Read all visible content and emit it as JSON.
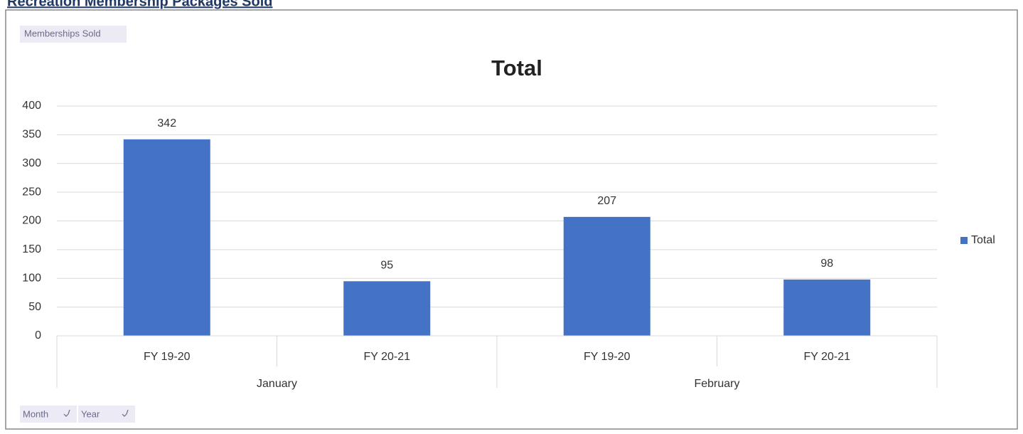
{
  "heading": "Recreation Membership Packages Sold",
  "chart_data": {
    "type": "bar",
    "title": "Total",
    "value_field": "Memberships Sold",
    "axis_fields": [
      "Month",
      "Year"
    ],
    "groups": [
      {
        "name": "January",
        "categories": [
          "FY 19-20",
          "FY 20-21"
        ]
      },
      {
        "name": "February",
        "categories": [
          "FY 19-20",
          "FY 20-21"
        ]
      }
    ],
    "series": [
      {
        "name": "Total",
        "color": "#4472c4",
        "values": [
          342,
          95,
          207,
          98
        ]
      }
    ],
    "ylim": [
      0,
      400
    ],
    "yticks": [
      0,
      50,
      100,
      150,
      200,
      250,
      300,
      350,
      400
    ],
    "grid": true,
    "legend": "right",
    "value_labels_shown": true
  }
}
